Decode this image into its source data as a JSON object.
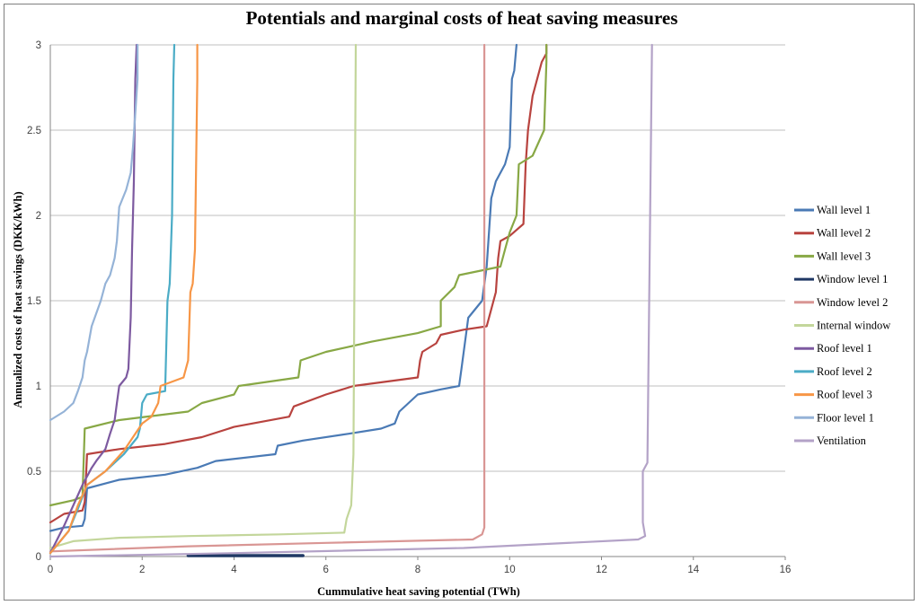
{
  "chart_data": {
    "type": "line",
    "title": "Potentials and marginal costs of heat saving measures",
    "xlabel": "Cummulative heat saving potential (TWh)",
    "ylabel": "Annualized  costs of heat savings (DKK/kWh)",
    "xlim": [
      0,
      16
    ],
    "ylim": [
      0,
      3
    ],
    "xticks": [
      "0",
      "2",
      "4",
      "6",
      "8",
      "10",
      "12",
      "14",
      "16"
    ],
    "yticks": [
      "0",
      "0.5",
      "1",
      "1.5",
      "2",
      "2.5",
      "3"
    ],
    "grid": "horizontal",
    "legend_position": "right",
    "series": [
      {
        "name": "Wall level 1",
        "color": "#4a7ab5",
        "points": [
          [
            0,
            0.15
          ],
          [
            0.3,
            0.17
          ],
          [
            0.7,
            0.18
          ],
          [
            0.75,
            0.22
          ],
          [
            0.8,
            0.4
          ],
          [
            1.5,
            0.45
          ],
          [
            2.5,
            0.48
          ],
          [
            3.2,
            0.52
          ],
          [
            3.6,
            0.56
          ],
          [
            4.9,
            0.6
          ],
          [
            4.95,
            0.65
          ],
          [
            5.5,
            0.68
          ],
          [
            6.5,
            0.72
          ],
          [
            7.2,
            0.75
          ],
          [
            7.5,
            0.78
          ],
          [
            7.6,
            0.85
          ],
          [
            8.0,
            0.95
          ],
          [
            8.5,
            0.98
          ],
          [
            8.9,
            1.0
          ],
          [
            8.95,
            1.1
          ],
          [
            9.1,
            1.4
          ],
          [
            9.4,
            1.5
          ],
          [
            9.5,
            1.7
          ],
          [
            9.6,
            2.1
          ],
          [
            9.7,
            2.2
          ],
          [
            9.9,
            2.3
          ],
          [
            10.0,
            2.4
          ],
          [
            10.05,
            2.8
          ],
          [
            10.1,
            2.85
          ],
          [
            10.15,
            3.0
          ]
        ]
      },
      {
        "name": "Wall level 2",
        "color": "#b8433f",
        "points": [
          [
            0,
            0.2
          ],
          [
            0.3,
            0.25
          ],
          [
            0.7,
            0.27
          ],
          [
            0.75,
            0.32
          ],
          [
            0.8,
            0.6
          ],
          [
            1.5,
            0.63
          ],
          [
            2.5,
            0.66
          ],
          [
            3.3,
            0.7
          ],
          [
            4,
            0.76
          ],
          [
            5.2,
            0.82
          ],
          [
            5.3,
            0.88
          ],
          [
            6,
            0.95
          ],
          [
            6.6,
            1.0
          ],
          [
            8.0,
            1.05
          ],
          [
            8.05,
            1.15
          ],
          [
            8.1,
            1.2
          ],
          [
            8.4,
            1.25
          ],
          [
            8.5,
            1.3
          ],
          [
            9.0,
            1.33
          ],
          [
            9.5,
            1.35
          ],
          [
            9.7,
            1.55
          ],
          [
            9.75,
            1.75
          ],
          [
            9.8,
            1.85
          ],
          [
            10.0,
            1.88
          ],
          [
            10.3,
            1.95
          ],
          [
            10.35,
            2.3
          ],
          [
            10.4,
            2.5
          ],
          [
            10.5,
            2.7
          ],
          [
            10.6,
            2.8
          ],
          [
            10.7,
            2.9
          ],
          [
            10.8,
            2.95
          ],
          [
            10.8,
            3.0
          ]
        ]
      },
      {
        "name": "Wall level 3",
        "color": "#88a845",
        "points": [
          [
            0,
            0.3
          ],
          [
            0.5,
            0.33
          ],
          [
            0.7,
            0.35
          ],
          [
            0.75,
            0.75
          ],
          [
            1.5,
            0.8
          ],
          [
            3.0,
            0.85
          ],
          [
            3.3,
            0.9
          ],
          [
            4,
            0.95
          ],
          [
            4.1,
            1.0
          ],
          [
            5.4,
            1.05
          ],
          [
            5.45,
            1.15
          ],
          [
            6,
            1.2
          ],
          [
            7,
            1.26
          ],
          [
            8.0,
            1.31
          ],
          [
            8.5,
            1.35
          ],
          [
            8.5,
            1.5
          ],
          [
            8.8,
            1.58
          ],
          [
            8.9,
            1.65
          ],
          [
            9.8,
            1.7
          ],
          [
            9.9,
            1.8
          ],
          [
            10.0,
            1.9
          ],
          [
            10.15,
            2.0
          ],
          [
            10.2,
            2.3
          ],
          [
            10.5,
            2.35
          ],
          [
            10.75,
            2.5
          ],
          [
            10.8,
            2.9
          ],
          [
            10.8,
            3.0
          ]
        ]
      },
      {
        "name": "Window level 1",
        "color": "#1f3864",
        "points": [
          [
            3.0,
            0.005
          ],
          [
            5.5,
            0.005
          ]
        ]
      },
      {
        "name": "Window level 2",
        "color": "#d99694",
        "points": [
          [
            0,
            0.03
          ],
          [
            3,
            0.06
          ],
          [
            6,
            0.08
          ],
          [
            9.2,
            0.1
          ],
          [
            9.4,
            0.13
          ],
          [
            9.45,
            0.17
          ],
          [
            9.45,
            3.0
          ]
        ]
      },
      {
        "name": "Internal window",
        "color": "#c3d69b",
        "points": [
          [
            0,
            0.05
          ],
          [
            0.5,
            0.09
          ],
          [
            1.5,
            0.11
          ],
          [
            3,
            0.12
          ],
          [
            5,
            0.13
          ],
          [
            6.4,
            0.14
          ],
          [
            6.45,
            0.22
          ],
          [
            6.55,
            0.3
          ],
          [
            6.6,
            0.6
          ],
          [
            6.65,
            3.0
          ]
        ]
      },
      {
        "name": "Roof level 1",
        "color": "#7d5aa0",
        "points": [
          [
            0,
            0.02
          ],
          [
            0.3,
            0.18
          ],
          [
            0.5,
            0.3
          ],
          [
            0.7,
            0.42
          ],
          [
            0.9,
            0.52
          ],
          [
            1.0,
            0.56
          ],
          [
            1.2,
            0.63
          ],
          [
            1.3,
            0.72
          ],
          [
            1.4,
            0.8
          ],
          [
            1.45,
            0.9
          ],
          [
            1.5,
            1.0
          ],
          [
            1.65,
            1.05
          ],
          [
            1.7,
            1.1
          ],
          [
            1.75,
            1.4
          ],
          [
            1.78,
            1.8
          ],
          [
            1.82,
            2.2
          ],
          [
            1.85,
            2.8
          ],
          [
            1.88,
            3.0
          ]
        ]
      },
      {
        "name": "Roof level 2",
        "color": "#4bacc6",
        "points": [
          [
            0,
            0.02
          ],
          [
            0.4,
            0.15
          ],
          [
            0.6,
            0.28
          ],
          [
            0.8,
            0.42
          ],
          [
            1.2,
            0.5
          ],
          [
            1.6,
            0.6
          ],
          [
            1.9,
            0.7
          ],
          [
            1.95,
            0.75
          ],
          [
            2.0,
            0.9
          ],
          [
            2.1,
            0.95
          ],
          [
            2.5,
            0.97
          ],
          [
            2.55,
            1.5
          ],
          [
            2.6,
            1.6
          ],
          [
            2.65,
            2.0
          ],
          [
            2.68,
            2.8
          ],
          [
            2.7,
            3.0
          ]
        ]
      },
      {
        "name": "Roof level 3",
        "color": "#f79646",
        "points": [
          [
            0,
            0.02
          ],
          [
            0.4,
            0.15
          ],
          [
            0.6,
            0.3
          ],
          [
            0.8,
            0.42
          ],
          [
            1.2,
            0.5
          ],
          [
            1.6,
            0.62
          ],
          [
            2.0,
            0.78
          ],
          [
            2.2,
            0.82
          ],
          [
            2.35,
            0.9
          ],
          [
            2.4,
            1.0
          ],
          [
            2.9,
            1.05
          ],
          [
            3.0,
            1.15
          ],
          [
            3.05,
            1.55
          ],
          [
            3.1,
            1.6
          ],
          [
            3.15,
            1.8
          ],
          [
            3.2,
            2.8
          ],
          [
            3.2,
            3.0
          ]
        ]
      },
      {
        "name": "Floor level 1",
        "color": "#95b3d7",
        "points": [
          [
            0,
            0.8
          ],
          [
            0.3,
            0.85
          ],
          [
            0.5,
            0.9
          ],
          [
            0.6,
            0.97
          ],
          [
            0.7,
            1.05
          ],
          [
            0.75,
            1.15
          ],
          [
            0.8,
            1.2
          ],
          [
            0.9,
            1.35
          ],
          [
            1.1,
            1.5
          ],
          [
            1.2,
            1.6
          ],
          [
            1.3,
            1.65
          ],
          [
            1.4,
            1.75
          ],
          [
            1.45,
            1.85
          ],
          [
            1.5,
            2.05
          ],
          [
            1.65,
            2.15
          ],
          [
            1.75,
            2.25
          ],
          [
            1.8,
            2.4
          ],
          [
            1.85,
            2.6
          ],
          [
            1.9,
            2.8
          ],
          [
            1.9,
            3.0
          ]
        ]
      },
      {
        "name": "Ventilation",
        "color": "#b3a2c7",
        "points": [
          [
            0,
            0.0
          ],
          [
            4,
            0.02
          ],
          [
            9,
            0.05
          ],
          [
            12.8,
            0.1
          ],
          [
            12.95,
            0.12
          ],
          [
            12.9,
            0.2
          ],
          [
            12.9,
            0.5
          ],
          [
            13.0,
            0.55
          ],
          [
            13.1,
            3.0
          ]
        ]
      }
    ]
  }
}
